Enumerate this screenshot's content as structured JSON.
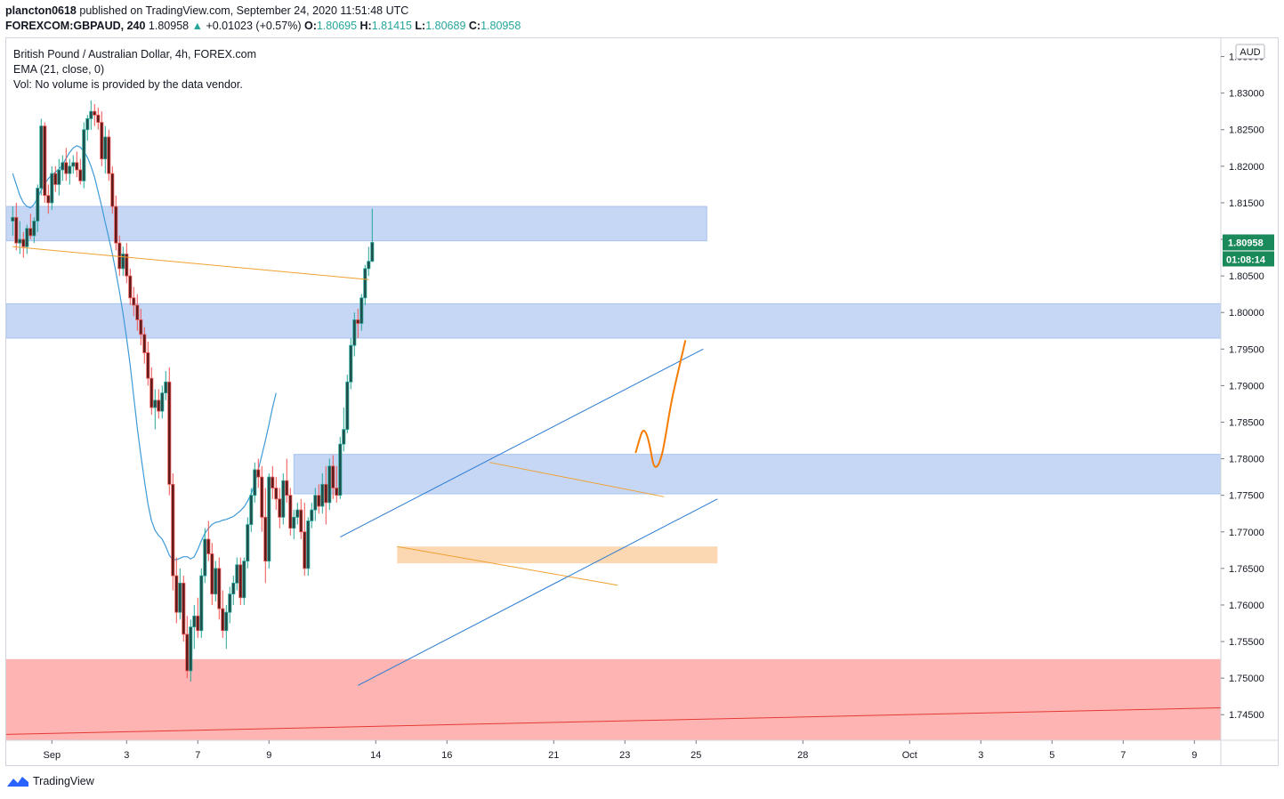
{
  "header": {
    "publisher": "plancton0618",
    "published_text": "published on TradingView.com, September 24, 2020 11:51:48 UTC",
    "symbol": "FOREXCOM:GBPAUD, 240",
    "last": "1.80958",
    "change": "+0.01023 (+0.57%)",
    "o_label": "O:",
    "o_value": "1.80695",
    "h_label": "H:",
    "h_value": "1.81415",
    "l_label": "L:",
    "l_value": "1.80689",
    "c_label": "C:",
    "c_value": "1.80958"
  },
  "legend": {
    "title": "British Pound / Australian Dollar, 4h, FOREX.com",
    "ema": "EMA (21, close, 0)",
    "vol": "Vol: No volume is provided by the data vendor."
  },
  "footer": {
    "brand": "TradingView"
  },
  "colors": {
    "up": "#26a69a",
    "down": "#ef5350",
    "zone_blue": "#c5d7f5",
    "zone_orange": "#fbd7b2",
    "zone_red": "#ffb4b4",
    "ema": "#3d9ad9",
    "trend_blue": "#2b7bd1",
    "trend_orange": "#f0a030",
    "projection": "#f57c00",
    "red_line": "#e53935",
    "price_badge": "#1b8a5a"
  },
  "chart_data": {
    "type": "candlestick",
    "symbol": "FOREXCOM:GBPAUD",
    "interval": "4h",
    "currency": "AUD",
    "ylim": [
      1.7415,
      1.8375
    ],
    "y_ticks": [
      "1.83500",
      "1.83000",
      "1.82500",
      "1.82000",
      "1.81500",
      "1.81000",
      "1.80500",
      "1.80000",
      "1.79500",
      "1.79000",
      "1.78500",
      "1.78000",
      "1.77500",
      "1.77000",
      "1.76500",
      "1.76000",
      "1.75500",
      "1.75000",
      "1.74500"
    ],
    "x_labels": [
      {
        "label": "Sep",
        "i": 11
      },
      {
        "label": "3",
        "i": 32
      },
      {
        "label": "7",
        "i": 52
      },
      {
        "label": "9",
        "i": 72
      },
      {
        "label": "14",
        "i": 102
      },
      {
        "label": "16",
        "i": 122
      },
      {
        "label": "21",
        "i": 152
      },
      {
        "label": "23",
        "i": 172
      },
      {
        "label": "25",
        "i": 192
      },
      {
        "label": "28",
        "i": 222
      },
      {
        "label": "Oct",
        "i": 252
      },
      {
        "label": "3",
        "i": 272
      },
      {
        "label": "5",
        "i": 292
      },
      {
        "label": "7",
        "i": 312
      },
      {
        "label": "9",
        "i": 332
      }
    ],
    "last_price": "1.80958",
    "countdown": "01:08:14",
    "ohlc": [
      [
        1.8125,
        1.8145,
        1.8105,
        1.813
      ],
      [
        1.813,
        1.815,
        1.8085,
        1.8095
      ],
      [
        1.8095,
        1.8125,
        1.808,
        1.81
      ],
      [
        1.81,
        1.811,
        1.8075,
        1.809
      ],
      [
        1.809,
        1.812,
        1.808,
        1.8115
      ],
      [
        1.8115,
        1.8135,
        1.81,
        1.8105
      ],
      [
        1.8105,
        1.813,
        1.8095,
        1.8125
      ],
      [
        1.8125,
        1.8175,
        1.811,
        1.817
      ],
      [
        1.817,
        1.8265,
        1.816,
        1.8255
      ],
      [
        1.8255,
        1.826,
        1.815,
        1.816
      ],
      [
        1.816,
        1.8175,
        1.8135,
        1.815
      ],
      [
        1.815,
        1.82,
        1.814,
        1.819
      ],
      [
        1.819,
        1.82,
        1.8165,
        1.8175
      ],
      [
        1.8175,
        1.821,
        1.816,
        1.8195
      ],
      [
        1.8195,
        1.8215,
        1.818,
        1.8205
      ],
      [
        1.8205,
        1.8225,
        1.818,
        1.819
      ],
      [
        1.819,
        1.821,
        1.8175,
        1.82
      ],
      [
        1.82,
        1.8215,
        1.819,
        1.8205
      ],
      [
        1.8205,
        1.822,
        1.8185,
        1.8195
      ],
      [
        1.8195,
        1.821,
        1.8175,
        1.818
      ],
      [
        1.818,
        1.826,
        1.817,
        1.825
      ],
      [
        1.825,
        1.827,
        1.8235,
        1.8265
      ],
      [
        1.8265,
        1.829,
        1.825,
        1.8275
      ],
      [
        1.8275,
        1.8285,
        1.8255,
        1.827
      ],
      [
        1.827,
        1.828,
        1.825,
        1.826
      ],
      [
        1.826,
        1.8275,
        1.82,
        1.821
      ],
      [
        1.821,
        1.8255,
        1.819,
        1.824
      ],
      [
        1.824,
        1.825,
        1.818,
        1.819
      ],
      [
        1.819,
        1.82,
        1.8135,
        1.8145
      ],
      [
        1.8145,
        1.816,
        1.8085,
        1.8095
      ],
      [
        1.8095,
        1.8105,
        1.805,
        1.806
      ],
      [
        1.806,
        1.809,
        1.805,
        1.808
      ],
      [
        1.808,
        1.8095,
        1.804,
        1.805
      ],
      [
        1.805,
        1.806,
        1.801,
        1.802
      ],
      [
        1.802,
        1.8035,
        1.7995,
        1.801
      ],
      [
        1.801,
        1.8025,
        1.7975,
        1.799
      ],
      [
        1.799,
        1.8005,
        1.7955,
        1.797
      ],
      [
        1.797,
        1.798,
        1.793,
        1.7945
      ],
      [
        1.7945,
        1.796,
        1.79,
        1.791
      ],
      [
        1.791,
        1.7925,
        1.786,
        1.787
      ],
      [
        1.787,
        1.7895,
        1.784,
        1.788
      ],
      [
        1.788,
        1.7895,
        1.7855,
        1.7865
      ],
      [
        1.7865,
        1.79,
        1.7855,
        1.789
      ],
      [
        1.789,
        1.792,
        1.788,
        1.7905
      ],
      [
        1.7905,
        1.7925,
        1.775,
        1.7765
      ],
      [
        1.7765,
        1.778,
        1.762,
        1.764
      ],
      [
        1.764,
        1.7665,
        1.7575,
        1.759
      ],
      [
        1.759,
        1.765,
        1.758,
        1.763
      ],
      [
        1.763,
        1.764,
        1.755,
        1.756
      ],
      [
        1.756,
        1.7585,
        1.75,
        1.751
      ],
      [
        1.751,
        1.758,
        1.7495,
        1.757
      ],
      [
        1.757,
        1.76,
        1.754,
        1.7585
      ],
      [
        1.7585,
        1.761,
        1.7555,
        1.7565
      ],
      [
        1.7565,
        1.765,
        1.7555,
        1.764
      ],
      [
        1.764,
        1.7705,
        1.763,
        1.769
      ],
      [
        1.769,
        1.7715,
        1.766,
        1.767
      ],
      [
        1.767,
        1.7685,
        1.76,
        1.7615
      ],
      [
        1.7615,
        1.766,
        1.7605,
        1.765
      ],
      [
        1.765,
        1.7665,
        1.758,
        1.7595
      ],
      [
        1.7595,
        1.762,
        1.7555,
        1.7565
      ],
      [
        1.7565,
        1.76,
        1.754,
        1.759
      ],
      [
        1.759,
        1.7625,
        1.7575,
        1.7615
      ],
      [
        1.7615,
        1.764,
        1.76,
        1.763
      ],
      [
        1.763,
        1.7665,
        1.762,
        1.7655
      ],
      [
        1.7655,
        1.7665,
        1.76,
        1.761
      ],
      [
        1.761,
        1.7665,
        1.76,
        1.766
      ],
      [
        1.766,
        1.772,
        1.765,
        1.771
      ],
      [
        1.771,
        1.776,
        1.77,
        1.775
      ],
      [
        1.775,
        1.7795,
        1.774,
        1.7785
      ],
      [
        1.7785,
        1.78,
        1.776,
        1.7775
      ],
      [
        1.7775,
        1.779,
        1.77,
        1.772
      ],
      [
        1.772,
        1.776,
        1.763,
        1.766
      ],
      [
        1.766,
        1.778,
        1.765,
        1.7775
      ],
      [
        1.7775,
        1.779,
        1.7745,
        1.776
      ],
      [
        1.776,
        1.7775,
        1.773,
        1.7745
      ],
      [
        1.7745,
        1.776,
        1.7705,
        1.772
      ],
      [
        1.772,
        1.778,
        1.771,
        1.777
      ],
      [
        1.777,
        1.78,
        1.774,
        1.775
      ],
      [
        1.775,
        1.776,
        1.7695,
        1.7705
      ],
      [
        1.7705,
        1.773,
        1.769,
        1.772
      ],
      [
        1.772,
        1.774,
        1.771,
        1.773
      ],
      [
        1.773,
        1.7745,
        1.769,
        1.77
      ],
      [
        1.77,
        1.774,
        1.764,
        1.765
      ],
      [
        1.765,
        1.772,
        1.764,
        1.7715
      ],
      [
        1.7715,
        1.774,
        1.7705,
        1.773
      ],
      [
        1.773,
        1.776,
        1.7715,
        1.775
      ],
      [
        1.775,
        1.7765,
        1.7725,
        1.7735
      ],
      [
        1.7735,
        1.778,
        1.7725,
        1.7765
      ],
      [
        1.7765,
        1.779,
        1.771,
        1.774
      ],
      [
        1.774,
        1.78,
        1.773,
        1.779
      ],
      [
        1.779,
        1.7805,
        1.7745,
        1.776
      ],
      [
        1.776,
        1.779,
        1.774,
        1.775
      ],
      [
        1.775,
        1.783,
        1.7745,
        1.782
      ],
      [
        1.782,
        1.787,
        1.781,
        1.784
      ],
      [
        1.784,
        1.7915,
        1.7835,
        1.7905
      ],
      [
        1.7905,
        1.7965,
        1.7895,
        1.7955
      ],
      [
        1.7955,
        1.8,
        1.794,
        1.799
      ],
      [
        1.799,
        1.8005,
        1.7965,
        1.7985
      ],
      [
        1.7985,
        1.8025,
        1.7975,
        1.802
      ],
      [
        1.802,
        1.8065,
        1.801,
        1.806
      ],
      [
        1.806,
        1.809,
        1.805,
        1.807
      ],
      [
        1.807,
        1.8142,
        1.8069,
        1.80958
      ]
    ],
    "ema_21": [
      1.819,
      1.8175,
      1.816,
      1.815,
      1.8145,
      1.8143,
      1.8148,
      1.8157,
      1.8167,
      1.8176,
      1.8183,
      1.8188,
      1.8192,
      1.8196,
      1.8202,
      1.8211,
      1.8219,
      1.8225,
      1.8228,
      1.8226,
      1.822,
      1.8212,
      1.82,
      1.8185,
      1.8165,
      1.8145,
      1.8123,
      1.8102,
      1.808,
      1.8055,
      1.8028,
      1.7998,
      1.7965,
      1.7928,
      1.7885,
      1.7842,
      1.7805,
      1.777,
      1.7738,
      1.7715,
      1.7702,
      1.7695,
      1.769,
      1.768,
      1.7668,
      1.7662,
      1.7662,
      1.7664,
      1.7666,
      1.7666,
      1.7663,
      1.7666,
      1.7676,
      1.7688,
      1.7698,
      1.7705,
      1.771,
      1.7713,
      1.7714,
      1.7716,
      1.7717,
      1.7719,
      1.7721,
      1.7725,
      1.7729,
      1.7734,
      1.7742,
      1.7752,
      1.7766,
      1.7785,
      1.7805,
      1.7825,
      1.7847,
      1.787,
      1.789
    ],
    "zones": [
      {
        "name": "blue-zone-top",
        "from_i": -2,
        "to_i": 195,
        "y1": 1.8145,
        "y2": 1.8098
      },
      {
        "name": "blue-zone-mid",
        "from_i": -2,
        "to_i": 345,
        "y1": 1.8012,
        "y2": 1.7965
      },
      {
        "name": "blue-zone-low",
        "from_i": 79,
        "to_i": 345,
        "y1": 1.7806,
        "y2": 1.7752
      },
      {
        "name": "orange-zone",
        "from_i": 108,
        "to_i": 198,
        "y1": 1.768,
        "y2": 1.7657
      },
      {
        "name": "red-zone",
        "from_i": -2,
        "to_i": 345,
        "y1": 1.7526,
        "y2": 1.7415
      }
    ],
    "lines": [
      {
        "name": "orange-trend-left",
        "color": "trend_orange",
        "i1": 0,
        "p1": 1.809,
        "i2": 100,
        "p2": 1.8045
      },
      {
        "name": "orange-trend-mid",
        "color": "trend_orange",
        "i1": 108,
        "p1": 1.768,
        "i2": 170,
        "p2": 1.7627
      },
      {
        "name": "orange-trend-upper",
        "color": "trend_orange",
        "i1": 134,
        "p1": 1.7795,
        "i2": 183,
        "p2": 1.7748
      },
      {
        "name": "blue-channel-top",
        "color": "trend_blue",
        "i1": 92,
        "p1": 1.7693,
        "i2": 194,
        "p2": 1.795
      },
      {
        "name": "blue-channel-bottom",
        "color": "trend_blue",
        "i1": 97,
        "p1": 1.749,
        "i2": 198,
        "p2": 1.7745
      },
      {
        "name": "blue-support-line",
        "color": "red_line",
        "i1": -2,
        "p1": 1.7423,
        "i2": 345,
        "p2": 1.746
      }
    ],
    "projection": [
      [
        175,
        1.7808
      ],
      [
        176,
        1.7825
      ],
      [
        177,
        1.784
      ],
      [
        178,
        1.7836
      ],
      [
        179,
        1.7818
      ],
      [
        180,
        1.779
      ],
      [
        181,
        1.7788
      ],
      [
        182,
        1.7798
      ],
      [
        183,
        1.7818
      ],
      [
        185,
        1.7878
      ],
      [
        187,
        1.792
      ],
      [
        189,
        1.7962
      ]
    ]
  }
}
